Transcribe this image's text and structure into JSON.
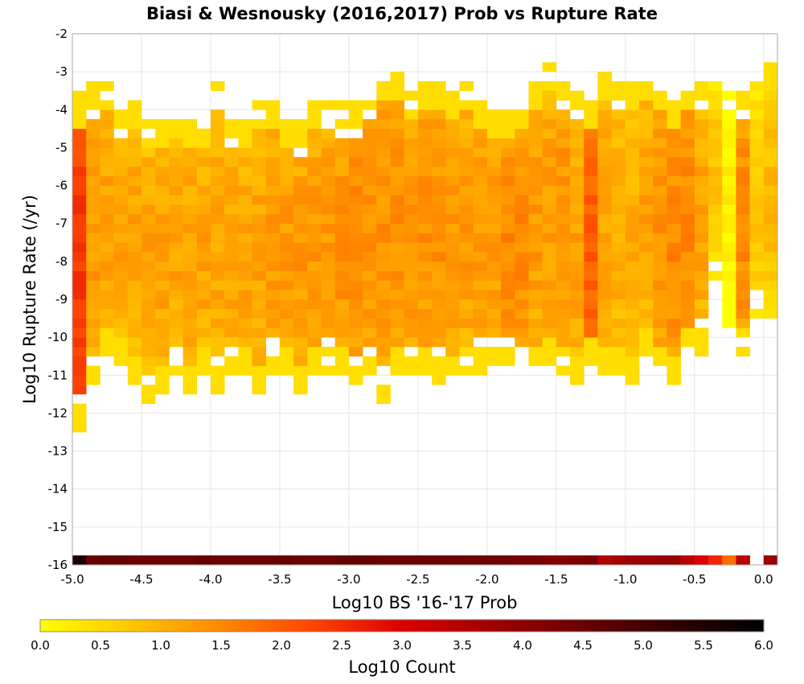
{
  "chart_data": {
    "type": "heatmap",
    "title": "Biasi & Wesnousky (2016,2017) Prob vs Rupture Rate",
    "xlabel": "Log10 BS '16-'17 Prob",
    "ylabel": "Log10 Rupture Rate (/yr)",
    "xlim": [
      -5.0,
      0.1
    ],
    "ylim": [
      -16,
      -2
    ],
    "x_ticks": [
      "-5.0",
      "-4.5",
      "-4.0",
      "-3.5",
      "-3.0",
      "-2.5",
      "-2.0",
      "-1.5",
      "-1.0",
      "-0.5",
      "0.0"
    ],
    "y_ticks": [
      "-2",
      "-3",
      "-4",
      "-5",
      "-6",
      "-7",
      "-8",
      "-9",
      "-10",
      "-11",
      "-12",
      "-13",
      "-14",
      "-15",
      "-16"
    ],
    "grid": true,
    "bin_size": {
      "x": 0.1,
      "y": 0.25
    },
    "summary": {
      "x_bin_centers": [
        -4.95,
        -4.85,
        -4.75,
        -4.65,
        -4.55,
        -4.45,
        -4.35,
        -4.25,
        -4.15,
        -4.05,
        -3.95,
        -3.85,
        -3.75,
        -3.65,
        -3.55,
        -3.45,
        -3.35,
        -3.25,
        -3.15,
        -3.05,
        -2.95,
        -2.85,
        -2.75,
        -2.65,
        -2.55,
        -2.45,
        -2.35,
        -2.25,
        -2.15,
        -2.05,
        -1.95,
        -1.85,
        -1.75,
        -1.65,
        -1.55,
        -1.45,
        -1.35,
        -1.25,
        -1.15,
        -1.05,
        -0.95,
        -0.85,
        -0.75,
        -0.65,
        -0.55,
        -0.45,
        -0.35,
        -0.25,
        -0.15,
        -0.05,
        0.05
      ],
      "rate_top": [
        -3.5,
        -3.25,
        -3.25,
        -4.0,
        -3.75,
        -4.25,
        -4.25,
        -4.0,
        -4.25,
        -4.25,
        -3.25,
        -4.25,
        -4.25,
        -3.75,
        -3.75,
        -4.25,
        -4.25,
        -3.75,
        -3.75,
        -3.75,
        -3.75,
        -3.25,
        -3.0,
        -3.0,
        -3.5,
        -3.25,
        -3.25,
        -3.5,
        -3.25,
        -3.75,
        -4.0,
        -4.0,
        -3.75,
        -3.25,
        -2.75,
        -3.25,
        -3.25,
        -3.75,
        -3.0,
        -3.25,
        -3.25,
        -3.0,
        -3.25,
        -3.75,
        -3.25,
        -3.25,
        -3.25,
        -3.25,
        -3.5,
        -3.25,
        -2.75
      ],
      "rate_bottom": [
        -12.5,
        -11.25,
        -10.5,
        -10.75,
        -11.25,
        -11.75,
        -11.5,
        -11.0,
        -11.5,
        -11.0,
        -11.5,
        -11.0,
        -11.0,
        -11.5,
        -11.0,
        -11.0,
        -11.5,
        -11.0,
        -11.0,
        -11.0,
        -11.25,
        -11.0,
        -11.75,
        -11.0,
        -11.0,
        -11.0,
        -11.25,
        -11.25,
        -11.0,
        -11.0,
        -10.75,
        -10.75,
        -11.25,
        -11.0,
        -10.75,
        -11.0,
        -11.25,
        -10.75,
        -11.0,
        -11.0,
        -11.25,
        -10.5,
        -11.0,
        -11.25,
        -10.5,
        -10.5,
        -8.5,
        -9.75,
        -10.5,
        -9.5,
        -9.5
      ],
      "log10_count_mean": [
        2.2,
        1.1,
        1.0,
        1.0,
        1.0,
        1.0,
        1.0,
        1.0,
        1.0,
        1.0,
        1.0,
        1.0,
        1.0,
        1.0,
        1.1,
        1.1,
        1.1,
        1.1,
        1.1,
        1.2,
        1.3,
        1.2,
        1.2,
        1.2,
        1.2,
        1.2,
        1.2,
        1.1,
        1.1,
        1.1,
        1.1,
        1.3,
        1.3,
        1.1,
        1.1,
        1.2,
        1.0,
        1.8,
        1.0,
        0.9,
        0.9,
        1.0,
        1.2,
        1.3,
        1.3,
        1.0,
        0.6,
        0.0,
        1.3,
        0.6,
        0.7
      ],
      "zero_rate_row": {
        "rate_label": "-16",
        "log10_count": [
          5.6,
          4.5,
          4.6,
          4.6,
          4.5,
          4.5,
          4.5,
          4.5,
          4.5,
          4.6,
          4.5,
          4.5,
          4.5,
          4.5,
          4.5,
          4.6,
          4.5,
          4.5,
          4.5,
          4.6,
          4.6,
          4.6,
          4.5,
          4.5,
          4.5,
          4.5,
          4.5,
          4.5,
          4.4,
          4.4,
          4.4,
          4.4,
          4.3,
          4.3,
          4.2,
          4.1,
          4.2,
          4.3,
          3.5,
          3.7,
          3.8,
          3.8,
          3.9,
          3.9,
          3.4,
          3.0,
          2.6,
          1.8,
          3.4,
          null,
          3.8
        ]
      }
    },
    "colorbar": {
      "label": "Log10 Count",
      "range": [
        0.0,
        6.0
      ],
      "ticks": [
        "0.0",
        "0.5",
        "1.0",
        "1.5",
        "2.0",
        "2.5",
        "3.0",
        "3.5",
        "4.0",
        "4.5",
        "5.0",
        "5.5",
        "6.0"
      ],
      "colors": [
        "#ffff00",
        "#ffc800",
        "#ff8800",
        "#ff4400",
        "#dd0000",
        "#a00000",
        "#6a0000",
        "#300000",
        "#000000"
      ]
    }
  }
}
